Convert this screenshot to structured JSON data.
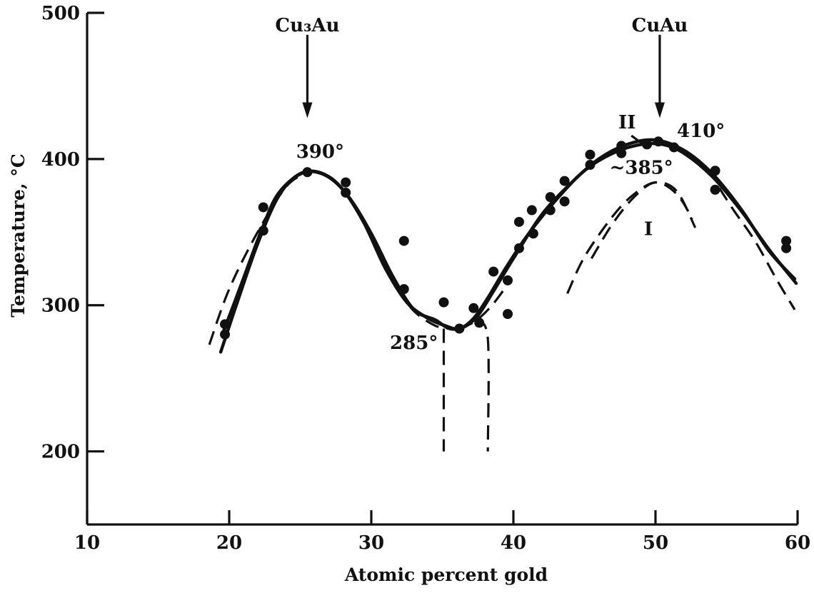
{
  "chart_data": {
    "type": "line",
    "title": "",
    "xlabel": "Atomic percent gold",
    "ylabel": "Temperature, °C",
    "xlim": [
      10,
      60
    ],
    "ylim": [
      150,
      500
    ],
    "grid": false,
    "x_ticks": [
      {
        "value": 10,
        "label": "10"
      },
      {
        "value": 20,
        "label": "20"
      },
      {
        "value": 30,
        "label": "30"
      },
      {
        "value": 40,
        "label": "40"
      },
      {
        "value": 50,
        "label": "50"
      },
      {
        "value": 60,
        "label": "60"
      }
    ],
    "y_ticks": [
      {
        "value": 200,
        "label": "200"
      },
      {
        "value": 300,
        "label": "300"
      },
      {
        "value": 400,
        "label": "400"
      },
      {
        "value": 500,
        "label": "500"
      }
    ],
    "series": [
      {
        "style": "solid",
        "points": [
          [
            19.4,
            268
          ],
          [
            20.5,
            300
          ],
          [
            22,
            342
          ],
          [
            23.5,
            375
          ],
          [
            25,
            390
          ],
          [
            26.5,
            390
          ],
          [
            28,
            379
          ],
          [
            29.5,
            356
          ],
          [
            31,
            325
          ],
          [
            32.5,
            302
          ],
          [
            34,
            291
          ],
          [
            35.2,
            286
          ],
          [
            36.2,
            284
          ],
          [
            37.2,
            291
          ],
          [
            38.2,
            305
          ],
          [
            39.5,
            326
          ],
          [
            41,
            348
          ],
          [
            43,
            372
          ],
          [
            45,
            392
          ],
          [
            47,
            404
          ],
          [
            49,
            410
          ],
          [
            50.5,
            410
          ],
          [
            52,
            404
          ],
          [
            54,
            388
          ],
          [
            56,
            365
          ],
          [
            58,
            338
          ],
          [
            59.9,
            315
          ]
        ]
      },
      {
        "style": "solid",
        "points": [
          [
            19.6,
            282
          ],
          [
            20.8,
            313
          ],
          [
            22.3,
            352
          ],
          [
            23.5,
            377
          ],
          [
            25.3,
            391
          ],
          [
            27,
            388
          ],
          [
            28.5,
            373
          ],
          [
            30,
            349
          ],
          [
            31.5,
            320
          ],
          [
            33,
            297
          ],
          [
            34.5,
            290
          ],
          [
            35.5,
            284
          ],
          [
            36.5,
            285
          ],
          [
            37.5,
            293
          ],
          [
            38.5,
            308
          ],
          [
            40,
            332
          ],
          [
            42,
            362
          ],
          [
            44,
            383
          ],
          [
            46,
            400
          ],
          [
            48,
            410
          ],
          [
            50,
            413
          ],
          [
            52,
            406
          ],
          [
            54,
            390
          ],
          [
            56,
            366
          ],
          [
            58,
            337
          ],
          [
            59.8,
            318
          ]
        ]
      },
      {
        "style": "dashed",
        "points": [
          [
            18.6,
            273
          ],
          [
            20,
            311
          ],
          [
            22,
            350
          ],
          [
            24,
            381
          ],
          [
            25.5,
            391
          ]
        ]
      },
      {
        "style": "dashed",
        "points": [
          [
            31.8,
            312
          ],
          [
            33,
            296
          ],
          [
            34.5,
            286
          ],
          [
            35.6,
            284
          ]
        ]
      },
      {
        "style": "dashed",
        "points": [
          [
            36.2,
            284
          ],
          [
            37.3,
            289
          ],
          [
            38.5,
            300
          ],
          [
            39.8,
            317
          ]
        ]
      },
      {
        "style": "dashed",
        "points": [
          [
            35.1,
            284
          ],
          [
            35.1,
            200
          ]
        ]
      },
      {
        "style": "dashed",
        "points": [
          [
            37.4,
            290
          ],
          [
            38.2,
            277
          ],
          [
            38.2,
            200
          ]
        ]
      },
      {
        "style": "dashed",
        "points": [
          [
            54.5,
            380
          ],
          [
            55.5,
            365
          ],
          [
            57,
            344
          ],
          [
            58.5,
            318
          ],
          [
            59.8,
            297
          ]
        ]
      },
      {
        "style": "dashed",
        "points": [
          [
            43.8,
            308
          ],
          [
            45,
            333
          ],
          [
            47,
            361
          ],
          [
            48.5,
            376
          ],
          [
            50,
            384
          ],
          [
            51.5,
            378
          ],
          [
            52.8,
            353
          ]
        ]
      },
      {
        "style": "dashed",
        "points": [
          [
            45.5,
            332
          ],
          [
            47,
            356
          ],
          [
            48.5,
            374
          ],
          [
            50,
            384
          ],
          [
            51.5,
            376
          ],
          [
            52.6,
            359
          ]
        ]
      }
    ],
    "points": [
      [
        19.7,
        287
      ],
      [
        19.7,
        280
      ],
      [
        22.4,
        367
      ],
      [
        22.4,
        351
      ],
      [
        25.5,
        391
      ],
      [
        28.2,
        384
      ],
      [
        28.2,
        377
      ],
      [
        32.3,
        344
      ],
      [
        32.3,
        311
      ],
      [
        35.1,
        302
      ],
      [
        36.2,
        284
      ],
      [
        37.2,
        298
      ],
      [
        37.6,
        288
      ],
      [
        38.6,
        323
      ],
      [
        39.6,
        317
      ],
      [
        39.6,
        294
      ],
      [
        40.4,
        357
      ],
      [
        40.4,
        339
      ],
      [
        41.3,
        365
      ],
      [
        41.4,
        349
      ],
      [
        42.6,
        374
      ],
      [
        42.6,
        365
      ],
      [
        43.6,
        385
      ],
      [
        43.6,
        371
      ],
      [
        45.4,
        403
      ],
      [
        45.4,
        396
      ],
      [
        47.6,
        409
      ],
      [
        47.6,
        404
      ],
      [
        49.4,
        410
      ],
      [
        50.2,
        412
      ],
      [
        51.3,
        408
      ],
      [
        54.2,
        392
      ],
      [
        54.2,
        379
      ],
      [
        59.2,
        344
      ],
      [
        59.2,
        339
      ]
    ],
    "annotations": [
      {
        "text": "390°",
        "x": 26.4,
        "y": 401
      },
      {
        "text": "285°",
        "x": 33,
        "y": 270
      },
      {
        "text": "II",
        "x": 48,
        "y": 421
      },
      {
        "text": "410°",
        "x": 53.2,
        "y": 415
      },
      {
        "text": "~385°",
        "x": 49,
        "y": 390
      },
      {
        "text": "I",
        "x": 49.5,
        "y": 348
      }
    ],
    "markers": [
      {
        "text": "Cu₃Au",
        "x": 25.5,
        "arrow_from": 485,
        "arrow_to": 428
      },
      {
        "text": "CuAu",
        "x": 50.3,
        "arrow_from": 485,
        "arrow_to": 428
      }
    ]
  }
}
